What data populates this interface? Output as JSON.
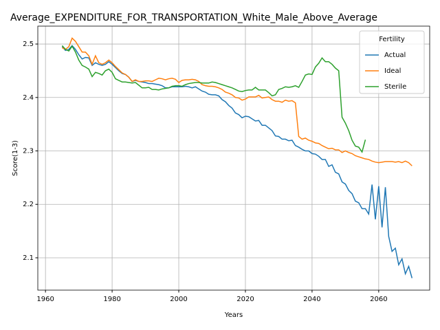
{
  "chart_data": {
    "type": "line",
    "title": "Average_EXPENDITURE_FOR_TRANSPORTATION_White_Male_Above_Average",
    "x_label": "Years",
    "y_label": "Score(1-3)",
    "legend_title": "Fertility",
    "legend_position": "upper right",
    "grid": true,
    "xlim": [
      1957.7,
      2075.3
    ],
    "xticks": [
      1960,
      1980,
      2000,
      2020,
      2040,
      2060
    ],
    "ylim": [
      2.0395,
      2.5335
    ],
    "yticks": [
      {
        "value": 2.1,
        "label": "2.1"
      },
      {
        "value": 2.2,
        "label": "2.2"
      },
      {
        "value": 2.3,
        "label": "2.3"
      },
      {
        "value": 2.4,
        "label": "2.4"
      },
      {
        "value": 2.5,
        "label": "2.5"
      }
    ],
    "x": [
      1965,
      1966,
      1967,
      1968,
      1969,
      1970,
      1971,
      1972,
      1973,
      1974,
      1975,
      1976,
      1977,
      1978,
      1979,
      1980,
      1981,
      1982,
      1983,
      1984,
      1985,
      1986,
      1987,
      1988,
      1989,
      1990,
      1991,
      1992,
      1993,
      1994,
      1995,
      1996,
      1997,
      1998,
      1999,
      2000,
      2001,
      2002,
      2003,
      2004,
      2005,
      2006,
      2007,
      2008,
      2009,
      2010,
      2011,
      2012,
      2013,
      2014,
      2015,
      2016,
      2017,
      2018,
      2019,
      2020,
      2021,
      2022,
      2023,
      2024,
      2025,
      2026,
      2027,
      2028,
      2029,
      2030,
      2031,
      2032,
      2033,
      2034,
      2035,
      2036,
      2037,
      2038,
      2039,
      2040,
      2041,
      2042,
      2043,
      2044,
      2045,
      2046,
      2047,
      2048,
      2049,
      2050,
      2051,
      2052,
      2053,
      2054,
      2055,
      2056,
      2057,
      2058,
      2059,
      2060,
      2061,
      2062,
      2063,
      2064,
      2065,
      2066,
      2067,
      2068,
      2069,
      2070
    ],
    "series": [
      {
        "name": "Actual",
        "color": "#1f77b4",
        "values": [
          2.495,
          2.488,
          2.49,
          2.497,
          2.49,
          2.48,
          2.472,
          2.475,
          2.474,
          2.46,
          2.465,
          2.462,
          2.46,
          2.462,
          2.467,
          2.462,
          2.456,
          2.45,
          2.445,
          2.443,
          2.438,
          2.43,
          2.432,
          2.43,
          2.429,
          2.428,
          2.426,
          2.426,
          2.425,
          2.424,
          2.422,
          2.418,
          2.418,
          2.42,
          2.42,
          2.42,
          2.42,
          2.421,
          2.42,
          2.418,
          2.42,
          2.416,
          2.412,
          2.41,
          2.406,
          2.405,
          2.405,
          2.403,
          2.396,
          2.392,
          2.385,
          2.38,
          2.371,
          2.368,
          2.362,
          2.365,
          2.364,
          2.36,
          2.356,
          2.357,
          2.348,
          2.348,
          2.343,
          2.338,
          2.328,
          2.327,
          2.322,
          2.322,
          2.319,
          2.32,
          2.31,
          2.307,
          2.303,
          2.3,
          2.3,
          2.295,
          2.294,
          2.29,
          2.284,
          2.284,
          2.271,
          2.274,
          2.26,
          2.257,
          2.242,
          2.238,
          2.226,
          2.22,
          2.206,
          2.203,
          2.192,
          2.192,
          2.182,
          2.237,
          2.172,
          2.234,
          2.157,
          2.232,
          2.14,
          2.112,
          2.118,
          2.087,
          2.098,
          2.07,
          2.084,
          2.062
        ]
      },
      {
        "name": "Ideal",
        "color": "#ff7f0e",
        "values": [
          2.493,
          2.49,
          2.495,
          2.511,
          2.505,
          2.495,
          2.485,
          2.485,
          2.478,
          2.462,
          2.478,
          2.465,
          2.462,
          2.465,
          2.47,
          2.465,
          2.458,
          2.452,
          2.446,
          2.443,
          2.438,
          2.43,
          2.433,
          2.43,
          2.43,
          2.431,
          2.431,
          2.43,
          2.433,
          2.436,
          2.435,
          2.433,
          2.435,
          2.436,
          2.434,
          2.428,
          2.432,
          2.433,
          2.433,
          2.434,
          2.433,
          2.43,
          2.424,
          2.422,
          2.421,
          2.421,
          2.42,
          2.418,
          2.415,
          2.41,
          2.408,
          2.405,
          2.4,
          2.399,
          2.395,
          2.397,
          2.401,
          2.401,
          2.401,
          2.404,
          2.399,
          2.4,
          2.401,
          2.396,
          2.393,
          2.393,
          2.391,
          2.395,
          2.393,
          2.394,
          2.39,
          2.327,
          2.322,
          2.324,
          2.32,
          2.318,
          2.315,
          2.314,
          2.31,
          2.307,
          2.304,
          2.305,
          2.302,
          2.302,
          2.297,
          2.3,
          2.297,
          2.295,
          2.291,
          2.289,
          2.287,
          2.285,
          2.284,
          2.281,
          2.279,
          2.278,
          2.279,
          2.28,
          2.28,
          2.28,
          2.279,
          2.28,
          2.278,
          2.281,
          2.278,
          2.272
        ]
      },
      {
        "name": "Sterile",
        "color": "#2ca02c",
        "values": [
          2.497,
          2.49,
          2.487,
          2.496,
          2.485,
          2.47,
          2.46,
          2.457,
          2.453,
          2.439,
          2.447,
          2.445,
          2.442,
          2.45,
          2.453,
          2.447,
          2.435,
          2.432,
          2.429,
          2.429,
          2.428,
          2.427,
          2.428,
          2.423,
          2.418,
          2.418,
          2.419,
          2.415,
          2.415,
          2.414,
          2.416,
          2.417,
          2.418,
          2.421,
          2.422,
          2.422,
          2.421,
          2.424,
          2.426,
          2.427,
          2.428,
          2.428,
          2.427,
          2.427,
          2.427,
          2.429,
          2.428,
          2.426,
          2.424,
          2.422,
          2.42,
          2.418,
          2.415,
          2.412,
          2.411,
          2.413,
          2.414,
          2.414,
          2.419,
          2.414,
          2.414,
          2.414,
          2.409,
          2.403,
          2.405,
          2.415,
          2.417,
          2.42,
          2.419,
          2.42,
          2.422,
          2.419,
          2.43,
          2.442,
          2.444,
          2.443,
          2.457,
          2.464,
          2.474,
          2.467,
          2.467,
          2.462,
          2.455,
          2.45,
          2.363,
          2.352,
          2.338,
          2.32,
          2.309,
          2.307,
          2.298,
          2.321,
          null,
          null,
          null,
          null,
          null,
          null,
          null,
          null,
          null,
          null,
          null,
          null,
          null,
          null
        ]
      }
    ]
  }
}
